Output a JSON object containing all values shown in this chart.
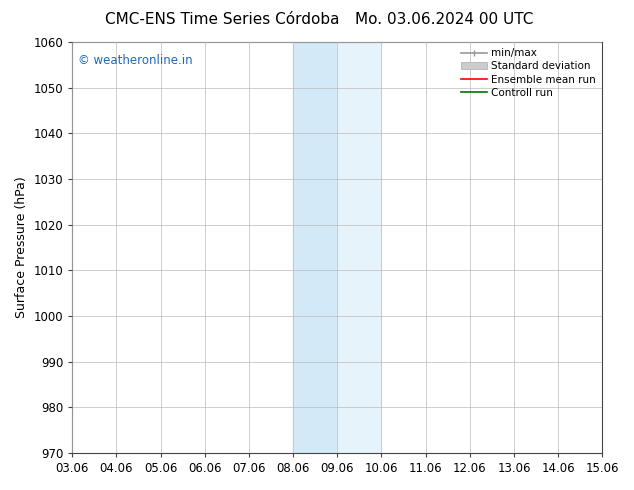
{
  "title_left": "CMC-ENS Time Series Córdoba",
  "title_right": "Mo. 03.06.2024 00 UTC",
  "ylabel": "Surface Pressure (hPa)",
  "xlim": [
    0,
    12
  ],
  "ylim": [
    970,
    1060
  ],
  "yticks": [
    970,
    980,
    990,
    1000,
    1010,
    1020,
    1030,
    1040,
    1050,
    1060
  ],
  "xtick_labels": [
    "03.06",
    "04.06",
    "05.06",
    "06.06",
    "07.06",
    "08.06",
    "09.06",
    "10.06",
    "11.06",
    "12.06",
    "13.06",
    "14.06",
    "15.06"
  ],
  "xtick_positions": [
    0,
    1,
    2,
    3,
    4,
    5,
    6,
    7,
    8,
    9,
    10,
    11,
    12
  ],
  "shaded_region_dark": [
    5.0,
    6.0
  ],
  "shaded_region_light": [
    6.0,
    7.0
  ],
  "shaded_color_dark": "#d4e9f7",
  "shaded_color_light": "#e6f3fb",
  "watermark_text": "© weatheronline.in",
  "watermark_color": "#1a6abf",
  "legend_labels": [
    "min/max",
    "Standard deviation",
    "Ensemble mean run",
    "Controll run"
  ],
  "legend_colors": [
    "#999999",
    "#cccccc",
    "#ff0000",
    "#007700"
  ],
  "background_color": "#ffffff",
  "grid_color": "#bbbbbb",
  "title_fontsize": 11,
  "axis_fontsize": 9,
  "tick_fontsize": 8.5,
  "watermark_fontsize": 8.5
}
